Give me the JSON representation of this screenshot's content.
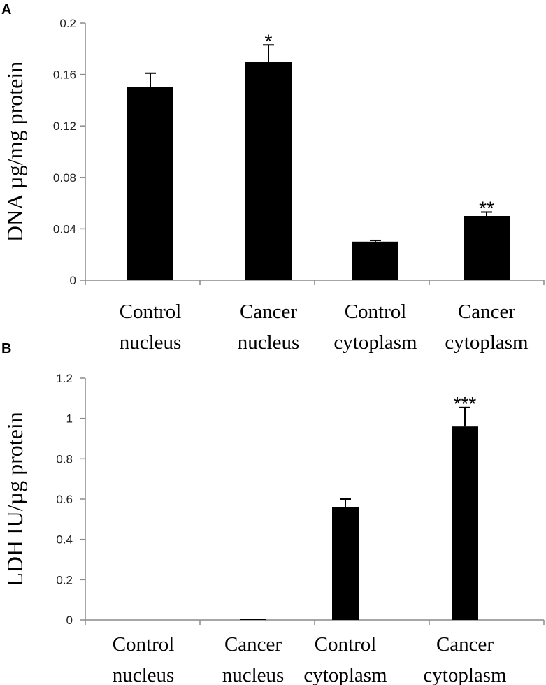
{
  "chart_data": [
    {
      "type": "bar",
      "panel_label": "A",
      "ylabel": "DNA µg/mg protein",
      "categories": [
        [
          "Control",
          "nucleus"
        ],
        [
          "Cancer",
          "nucleus"
        ],
        [
          "Control",
          "cytoplasm"
        ],
        [
          "Cancer",
          "cytoplasm"
        ]
      ],
      "values": [
        0.15,
        0.17,
        0.03,
        0.05
      ],
      "errors": [
        0.011,
        0.013,
        0.001,
        0.003
      ],
      "significance": [
        "",
        "*",
        "",
        "**"
      ],
      "ylim": [
        0,
        0.2
      ],
      "yticks": [
        "0",
        "0.04",
        "0.08",
        "0.12",
        "0.16",
        "0.2"
      ],
      "ytick_values": [
        0,
        0.04,
        0.08,
        0.12,
        0.16,
        0.2
      ],
      "grid": false,
      "legend": "none"
    },
    {
      "type": "bar",
      "panel_label": "B",
      "ylabel": "LDH IU/µg protein",
      "categories": [
        [
          "Control",
          "nucleus"
        ],
        [
          "Cancer",
          "nucleus"
        ],
        [
          "Control",
          "cytoplasm"
        ],
        [
          "Cancer",
          "cytoplasm"
        ]
      ],
      "values": [
        0,
        0.005,
        0.56,
        0.96
      ],
      "errors": [
        0,
        0,
        0.04,
        0.095
      ],
      "significance": [
        "",
        "",
        "",
        "***"
      ],
      "ylim": [
        0,
        1.2
      ],
      "yticks": [
        "0",
        "0.2",
        "0.4",
        "0.6",
        "0.8",
        "1",
        "1.2"
      ],
      "ytick_values": [
        0,
        0.2,
        0.4,
        0.6,
        0.8,
        1,
        1.2
      ],
      "grid": false,
      "legend": "none"
    }
  ],
  "colors": {
    "bar": "#000000",
    "axis": "#8a8a8a"
  }
}
